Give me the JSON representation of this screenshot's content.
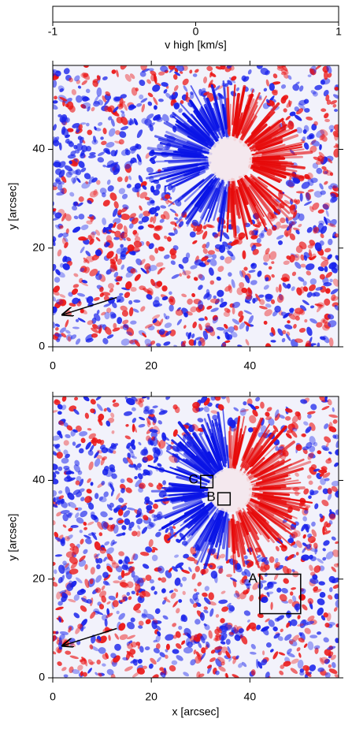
{
  "chart_data": [
    {
      "type": "colorbar",
      "xlim": [
        -1,
        1
      ],
      "xticks": [
        -1,
        0,
        1
      ],
      "xlabel": "v high [km/s]",
      "colormap": [
        "#0000ff",
        "#ffffff",
        "#ff0000"
      ]
    },
    {
      "type": "image",
      "xlim": [
        0,
        58
      ],
      "ylim": [
        0,
        57
      ],
      "xticks": [
        0,
        20,
        40
      ],
      "yticks": [
        0,
        20,
        40
      ],
      "ylabel": "y [arcsec]",
      "arrows": [
        {
          "x": [
            13,
            2
          ],
          "y": [
            10,
            6.5
          ]
        }
      ],
      "boxes": []
    },
    {
      "type": "image",
      "xlim": [
        0,
        58
      ],
      "ylim": [
        0,
        57
      ],
      "xticks": [
        0,
        20,
        40
      ],
      "yticks": [
        0,
        20,
        40
      ],
      "xlabel": "x [arcsec]",
      "ylabel": "y [arcsec]",
      "arrows": [
        {
          "x": [
            13,
            2
          ],
          "y": [
            10,
            6.5
          ]
        }
      ],
      "boxes": [
        {
          "label": "C",
          "x": [
            30,
            32.5
          ],
          "y": [
            38.5,
            41
          ]
        },
        {
          "label": "B",
          "x": [
            33.5,
            36
          ],
          "y": [
            35,
            37.5
          ]
        },
        {
          "label": "A",
          "x": [
            42,
            50.3
          ],
          "y": [
            13,
            21
          ]
        }
      ]
    }
  ]
}
